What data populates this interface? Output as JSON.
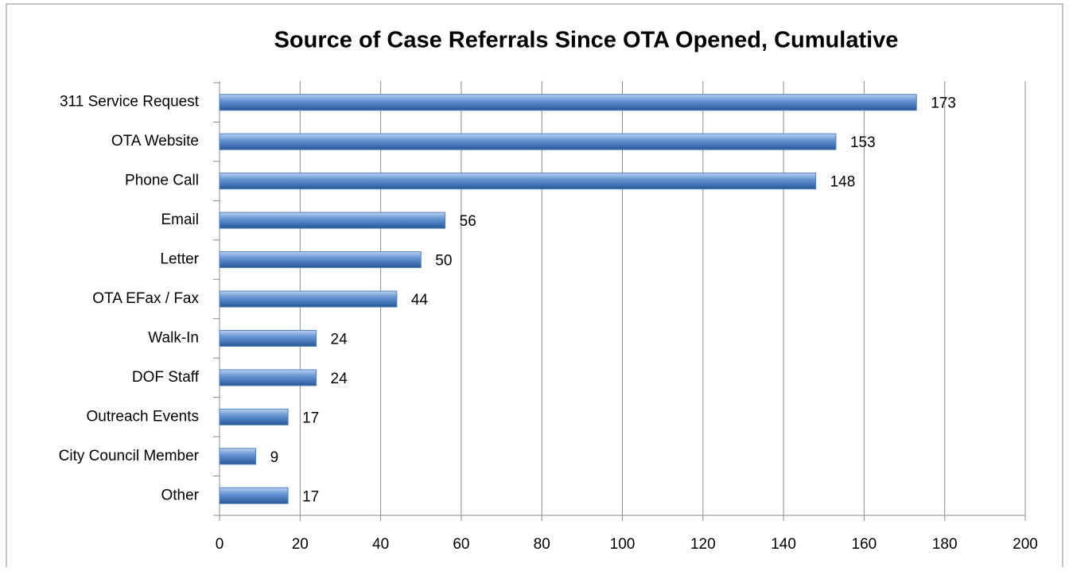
{
  "chart_data": {
    "type": "bar",
    "orientation": "horizontal",
    "title": "Source of Case Referrals Since OTA Opened, Cumulative",
    "categories": [
      "311 Service Request",
      "OTA Website",
      "Phone Call",
      "Email",
      "Letter",
      "OTA EFax / Fax",
      "Walk-In",
      "DOF Staff",
      "Outreach Events",
      "City Council Member",
      "Other"
    ],
    "values": [
      173,
      153,
      148,
      56,
      50,
      44,
      24,
      24,
      17,
      9,
      17
    ],
    "color": "#4f81bd",
    "xlim": [
      0,
      200
    ],
    "xticks": [
      0,
      20,
      40,
      60,
      80,
      100,
      120,
      140,
      160,
      180,
      200
    ],
    "grid": true
  }
}
